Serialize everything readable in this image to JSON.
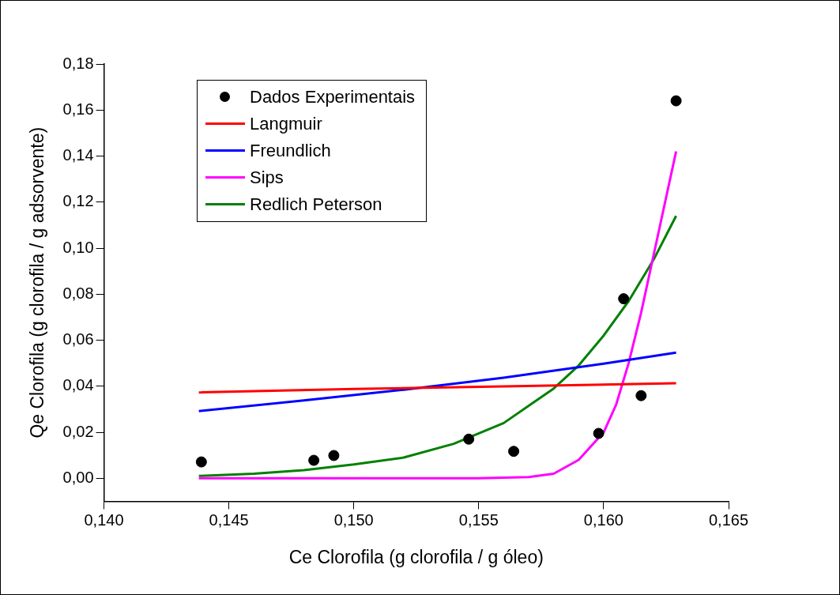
{
  "chart_data": {
    "type": "scatter",
    "xlabel": "Ce Clorofila (g clorofila / g óleo)",
    "ylabel": "Qe Clorofila (g clorofila / g adsorvente)",
    "xlim": [
      0.14,
      0.165
    ],
    "ylim": [
      -0.01,
      0.18
    ],
    "xticks": [
      {
        "value": 0.14,
        "label": "0,140"
      },
      {
        "value": 0.145,
        "label": "0,145"
      },
      {
        "value": 0.15,
        "label": "0,150"
      },
      {
        "value": 0.155,
        "label": "0,155"
      },
      {
        "value": 0.16,
        "label": "0,160"
      },
      {
        "value": 0.165,
        "label": "0,165"
      }
    ],
    "yticks": [
      {
        "value": 0,
        "label": "0,00"
      },
      {
        "value": 0.02,
        "label": "0,02"
      },
      {
        "value": 0.04,
        "label": "0,04"
      },
      {
        "value": 0.06,
        "label": "0,06"
      },
      {
        "value": 0.08,
        "label": "0,08"
      },
      {
        "value": 0.1,
        "label": "0,10"
      },
      {
        "value": 0.12,
        "label": "0,12"
      },
      {
        "value": 0.14,
        "label": "0,14"
      },
      {
        "value": 0.16,
        "label": "0,16"
      },
      {
        "value": 0.18,
        "label": "0,18"
      }
    ],
    "grid": false,
    "legend": "top left",
    "line_style": "solid",
    "series": [
      {
        "name": "Dados Experimentais",
        "marker": "circle",
        "color": "#000000",
        "x": [
          0.1439,
          0.1484,
          0.1492,
          0.1546,
          0.1564,
          0.1598,
          0.1608,
          0.1615,
          0.1629
        ],
        "values": [
          0.0071,
          0.0078,
          0.0099,
          0.017,
          0.0117,
          0.0195,
          0.078,
          0.0359,
          0.164
        ]
      },
      {
        "name": "Langmuir",
        "type": "line",
        "marker": "none",
        "color": "#ff0000",
        "x": [
          0.1438,
          0.15,
          0.156,
          0.1629
        ],
        "values": [
          0.0373,
          0.0388,
          0.0399,
          0.0413
        ]
      },
      {
        "name": "Freundlich",
        "type": "line",
        "marker": "none",
        "color": "#0000ff",
        "x": [
          0.1438,
          0.148,
          0.152,
          0.156,
          0.16,
          0.1629
        ],
        "values": [
          0.0292,
          0.0338,
          0.0385,
          0.0437,
          0.0498,
          0.0546
        ]
      },
      {
        "name": "Sips",
        "type": "line",
        "marker": "none",
        "color": "#ff00ff",
        "x": [
          0.1438,
          0.155,
          0.157,
          0.158,
          0.159,
          0.16,
          0.1605,
          0.161,
          0.1615,
          0.162,
          0.1625,
          0.1629
        ],
        "values": [
          0,
          0,
          0.0005,
          0.002,
          0.008,
          0.02,
          0.032,
          0.05,
          0.072,
          0.097,
          0.122,
          0.142
        ]
      },
      {
        "name": "Redlich Peterson",
        "type": "line",
        "marker": "none",
        "color": "#008000",
        "x": [
          0.1438,
          0.146,
          0.148,
          0.15,
          0.152,
          0.154,
          0.156,
          0.158,
          0.159,
          0.16,
          0.161,
          0.162,
          0.1629
        ],
        "values": [
          0.001,
          0.002,
          0.0035,
          0.006,
          0.009,
          0.015,
          0.024,
          0.039,
          0.049,
          0.062,
          0.077,
          0.095,
          0.114
        ]
      }
    ]
  }
}
